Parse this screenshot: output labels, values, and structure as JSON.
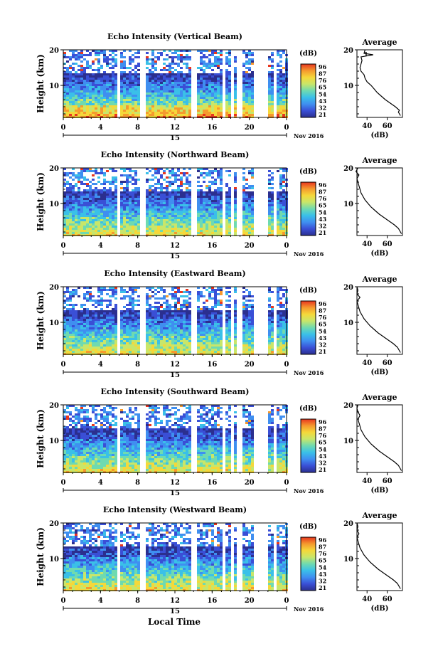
{
  "figure": {
    "xlabel": "Local Time",
    "colorbar_unit": "(dB)",
    "colorbar_ticks": [
      "96",
      "87",
      "76",
      "65",
      "54",
      "43",
      "32",
      "21"
    ],
    "colormap": [
      "#2b2f8f",
      "#3a4fd6",
      "#3f8ff0",
      "#3ac0e8",
      "#6fdab0",
      "#c8e66a",
      "#f5d83a",
      "#f59a2e",
      "#e8361f"
    ]
  },
  "chart_data": [
    {
      "type": "heatmap",
      "title": "Echo Intensity (Vertical Beam)",
      "ylabel": "Height (km)",
      "x_ticks": [
        "0",
        "4",
        "8",
        "12",
        "16",
        "20",
        "0"
      ],
      "y_ticks": [
        "20",
        "10"
      ],
      "date_bar_label": "15",
      "date_label": "Nov 2016",
      "xlim": [
        0,
        24
      ],
      "ylim": [
        1,
        20
      ],
      "gaps_hours": [
        [
          5.8,
          6.1
        ],
        [
          8.2,
          8.6
        ],
        [
          13.7,
          14.1
        ],
        [
          16.9,
          17.3
        ],
        [
          17.9,
          18.2
        ],
        [
          18.6,
          19.0
        ],
        [
          20.3,
          22.0
        ],
        [
          22.4,
          22.7
        ]
      ],
      "profile": {
        "title": "Average",
        "xlabel": "(dB)",
        "x_ticks": [
          "40",
          "60"
        ],
        "y_ticks": [
          "20",
          "10"
        ],
        "xlim": [
          30,
          75
        ],
        "ylim": [
          1,
          20
        ],
        "points": [
          [
            73,
            1.5
          ],
          [
            71,
            2.5
          ],
          [
            72,
            3
          ],
          [
            68,
            4
          ],
          [
            63,
            5
          ],
          [
            58,
            6
          ],
          [
            54,
            7
          ],
          [
            50,
            8
          ],
          [
            47,
            9
          ],
          [
            44,
            10
          ],
          [
            40,
            11
          ],
          [
            38,
            12
          ],
          [
            37,
            13
          ],
          [
            34,
            14
          ],
          [
            33,
            15
          ],
          [
            34,
            16
          ],
          [
            35,
            17
          ],
          [
            34,
            18
          ],
          [
            46,
            18.6
          ],
          [
            37,
            19
          ],
          [
            38,
            20
          ]
        ],
        "annotation": "1 "
      }
    },
    {
      "type": "heatmap",
      "title": "Echo Intensity (Northward Beam)",
      "ylabel": "Height (km)",
      "x_ticks": [
        "0",
        "4",
        "8",
        "12",
        "16",
        "20",
        "0"
      ],
      "y_ticks": [
        "20",
        "10"
      ],
      "date_bar_label": "15",
      "date_label": "Nov 2016",
      "xlim": [
        0,
        24
      ],
      "ylim": [
        1,
        20
      ],
      "gaps_hours": [
        [
          5.8,
          6.1
        ],
        [
          8.2,
          8.6
        ],
        [
          13.7,
          14.1
        ],
        [
          16.9,
          17.3
        ],
        [
          17.9,
          18.2
        ],
        [
          18.6,
          19.0
        ],
        [
          20.3,
          22.0
        ],
        [
          22.4,
          22.7
        ]
      ],
      "profile": {
        "title": "Average",
        "xlabel": "(dB)",
        "x_ticks": [
          "40",
          "60"
        ],
        "y_ticks": [
          "20",
          "10"
        ],
        "xlim": [
          30,
          75
        ],
        "ylim": [
          1,
          20
        ],
        "points": [
          [
            74,
            1.5
          ],
          [
            71,
            3
          ],
          [
            67,
            4
          ],
          [
            62,
            5
          ],
          [
            57,
            6
          ],
          [
            52,
            7
          ],
          [
            48,
            8
          ],
          [
            44,
            9
          ],
          [
            41,
            10
          ],
          [
            38,
            11
          ],
          [
            36,
            12
          ],
          [
            34,
            13
          ],
          [
            33,
            14
          ],
          [
            32,
            15
          ],
          [
            31,
            16
          ],
          [
            30,
            17
          ],
          [
            32,
            18
          ],
          [
            29,
            19
          ],
          [
            31,
            20
          ]
        ]
      }
    },
    {
      "type": "heatmap",
      "title": "Echo Intensity (Eastward Beam)",
      "ylabel": "Height (km)",
      "x_ticks": [
        "0",
        "4",
        "8",
        "12",
        "16",
        "20",
        "0"
      ],
      "y_ticks": [
        "20",
        "10"
      ],
      "date_bar_label": "15",
      "date_label": "Nov 2016",
      "xlim": [
        0,
        24
      ],
      "ylim": [
        1,
        20
      ],
      "gaps_hours": [
        [
          5.8,
          6.1
        ],
        [
          8.2,
          8.6
        ],
        [
          13.7,
          14.1
        ],
        [
          16.9,
          17.3
        ],
        [
          17.9,
          18.2
        ],
        [
          18.6,
          19.0
        ],
        [
          20.3,
          22.0
        ],
        [
          22.4,
          22.7
        ]
      ],
      "colorbar_ticks": [
        "96",
        "87",
        "76",
        "65",
        "54",
        "43",
        "32",
        "21"
      ],
      "profile": {
        "title": "Average",
        "xlabel": "(dB)",
        "x_ticks": [
          "40",
          "60"
        ],
        "y_ticks": [
          "20",
          "10"
        ],
        "xlim": [
          30,
          75
        ],
        "ylim": [
          1,
          20
        ],
        "points": [
          [
            73,
            1.5
          ],
          [
            70,
            3
          ],
          [
            66,
            4
          ],
          [
            61,
            5
          ],
          [
            56,
            6
          ],
          [
            51,
            7
          ],
          [
            47,
            8
          ],
          [
            43,
            9
          ],
          [
            40,
            10
          ],
          [
            37,
            11
          ],
          [
            35,
            12
          ],
          [
            33,
            13
          ],
          [
            32,
            14
          ],
          [
            31,
            15
          ],
          [
            30,
            16
          ],
          [
            33,
            17
          ],
          [
            30,
            18
          ],
          [
            31,
            19
          ],
          [
            30,
            20
          ]
        ]
      }
    },
    {
      "type": "heatmap",
      "title": "Echo Intensity (Southward Beam)",
      "ylabel": "Height (km)",
      "x_ticks": [
        "0",
        "4",
        "8",
        "12",
        "16",
        "20",
        "0"
      ],
      "y_ticks": [
        "20",
        "10"
      ],
      "date_bar_label": "15",
      "date_label": "Nov 2016",
      "xlim": [
        0,
        24
      ],
      "ylim": [
        1,
        20
      ],
      "gaps_hours": [
        [
          5.8,
          6.1
        ],
        [
          8.2,
          8.6
        ],
        [
          13.7,
          14.1
        ],
        [
          16.9,
          17.3
        ],
        [
          17.9,
          18.2
        ],
        [
          18.6,
          19.0
        ],
        [
          20.3,
          22.0
        ],
        [
          22.4,
          22.7
        ]
      ],
      "colorbar_ticks": [
        "96",
        "87",
        "76",
        "65",
        "54",
        "43",
        "32",
        "21"
      ],
      "profile": {
        "title": "Average",
        "xlabel": "(dB)",
        "x_ticks": [
          "40",
          "60"
        ],
        "y_ticks": [
          "20",
          "10"
        ],
        "xlim": [
          30,
          75
        ],
        "ylim": [
          1,
          20
        ],
        "points": [
          [
            74,
            1.5
          ],
          [
            71,
            3
          ],
          [
            67,
            4
          ],
          [
            62,
            5
          ],
          [
            57,
            6
          ],
          [
            52,
            7
          ],
          [
            48,
            8
          ],
          [
            44,
            9
          ],
          [
            41,
            10
          ],
          [
            38,
            11
          ],
          [
            36,
            12
          ],
          [
            34,
            13
          ],
          [
            33,
            14
          ],
          [
            32,
            15
          ],
          [
            31,
            16
          ],
          [
            33,
            17
          ],
          [
            31,
            18
          ],
          [
            30,
            19
          ],
          [
            31,
            20
          ]
        ]
      }
    },
    {
      "type": "heatmap",
      "title": "Echo Intensity (Westward Beam)",
      "ylabel": "Height (km)",
      "x_ticks": [
        "0",
        "4",
        "8",
        "12",
        "16",
        "20",
        "0"
      ],
      "y_ticks": [
        "20",
        "10"
      ],
      "date_bar_label": "15",
      "date_label": "Nov 2016",
      "xlim": [
        0,
        24
      ],
      "ylim": [
        1,
        20
      ],
      "gaps_hours": [
        [
          5.8,
          6.1
        ],
        [
          8.2,
          8.6
        ],
        [
          13.7,
          14.1
        ],
        [
          16.9,
          17.3
        ],
        [
          17.9,
          18.2
        ],
        [
          18.6,
          19.0
        ],
        [
          20.3,
          22.0
        ],
        [
          22.4,
          22.7
        ]
      ],
      "colorbar_ticks": [
        "96",
        "87",
        "76",
        "65",
        "54",
        "43",
        "32",
        "21"
      ],
      "profile": {
        "title": "Average",
        "xlabel": "(dB)",
        "x_ticks": [
          "40",
          "60"
        ],
        "y_ticks": [
          "20",
          "10"
        ],
        "xlim": [
          30,
          75
        ],
        "ylim": [
          1,
          20
        ],
        "points": [
          [
            73,
            1.5
          ],
          [
            70,
            3
          ],
          [
            66,
            4
          ],
          [
            61,
            5
          ],
          [
            56,
            6
          ],
          [
            51,
            7
          ],
          [
            47,
            8
          ],
          [
            43,
            9
          ],
          [
            40,
            10
          ],
          [
            37,
            11
          ],
          [
            35,
            12
          ],
          [
            33,
            13
          ],
          [
            32,
            14
          ],
          [
            31,
            15
          ],
          [
            30,
            16
          ],
          [
            32,
            17
          ],
          [
            30,
            18
          ],
          [
            31,
            19
          ],
          [
            30,
            20
          ]
        ]
      }
    }
  ]
}
